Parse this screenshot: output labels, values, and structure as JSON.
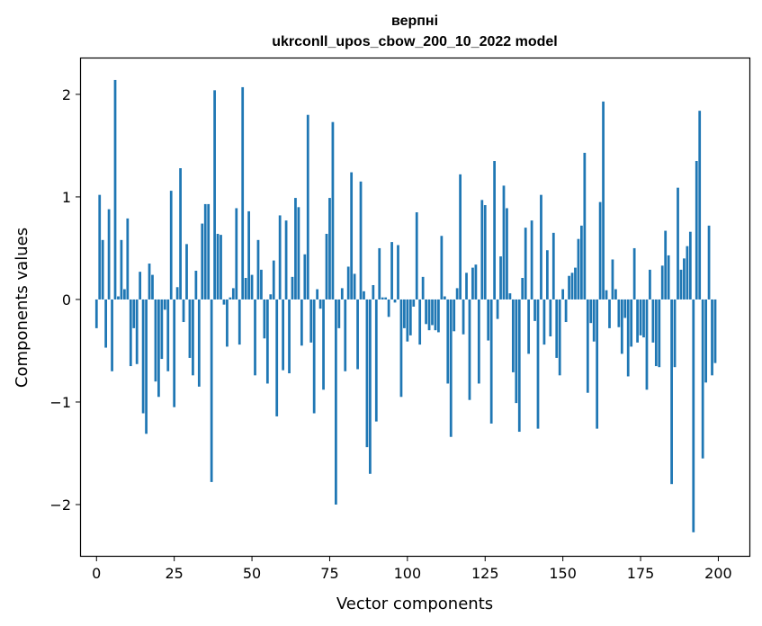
{
  "chart_data": {
    "type": "bar",
    "title": "верпні",
    "subtitle": "ukrconll_upos_cbow_200_10_2022 model",
    "xlabel": "Vector components",
    "ylabel": "Components values",
    "xlim": [
      -5,
      210
    ],
    "ylim": [
      -2.5,
      2.35
    ],
    "xticks": [
      0,
      25,
      50,
      75,
      100,
      125,
      150,
      175,
      200
    ],
    "yticks": [
      -2,
      -1,
      0,
      1,
      2
    ],
    "xtick_labels": [
      "0",
      "25",
      "50",
      "75",
      "100",
      "125",
      "150",
      "175",
      "200"
    ],
    "ytick_labels": [
      "−2",
      "−1",
      "0",
      "1",
      "2"
    ],
    "grid": false,
    "bar_color": "#1f77b4",
    "x": [
      0,
      1,
      2,
      3,
      4,
      5,
      6,
      7,
      8,
      9,
      10,
      11,
      12,
      13,
      14,
      15,
      16,
      17,
      18,
      19,
      20,
      21,
      22,
      23,
      24,
      25,
      26,
      27,
      28,
      29,
      30,
      31,
      32,
      33,
      34,
      35,
      36,
      37,
      38,
      39,
      40,
      41,
      42,
      43,
      44,
      45,
      46,
      47,
      48,
      49,
      50,
      51,
      52,
      53,
      54,
      55,
      56,
      57,
      58,
      59,
      60,
      61,
      62,
      63,
      64,
      65,
      66,
      67,
      68,
      69,
      70,
      71,
      72,
      73,
      74,
      75,
      76,
      77,
      78,
      79,
      80,
      81,
      82,
      83,
      84,
      85,
      86,
      87,
      88,
      89,
      90,
      91,
      92,
      93,
      94,
      95,
      96,
      97,
      98,
      99,
      100,
      101,
      102,
      103,
      104,
      105,
      106,
      107,
      108,
      109,
      110,
      111,
      112,
      113,
      114,
      115,
      116,
      117,
      118,
      119,
      120,
      121,
      122,
      123,
      124,
      125,
      126,
      127,
      128,
      129,
      130,
      131,
      132,
      133,
      134,
      135,
      136,
      137,
      138,
      139,
      140,
      141,
      142,
      143,
      144,
      145,
      146,
      147,
      148,
      149,
      150,
      151,
      152,
      153,
      154,
      155,
      156,
      157,
      158,
      159,
      160,
      161,
      162,
      163,
      164,
      165,
      166,
      167,
      168,
      169,
      170,
      171,
      172,
      173,
      174,
      175,
      176,
      177,
      178,
      179,
      180,
      181,
      182,
      183,
      184,
      185,
      186,
      187,
      188,
      189,
      190,
      191,
      192,
      193,
      194,
      195,
      196,
      197,
      198,
      199
    ],
    "values": [
      -0.28,
      1.02,
      0.58,
      -0.47,
      0.88,
      -0.7,
      2.14,
      0.03,
      0.58,
      0.1,
      0.79,
      -0.65,
      -0.28,
      -0.63,
      0.27,
      -1.11,
      -1.31,
      0.35,
      0.24,
      -0.8,
      -0.95,
      -0.58,
      -0.1,
      -0.7,
      1.06,
      -1.05,
      0.12,
      1.28,
      -0.22,
      0.54,
      -0.57,
      -0.74,
      0.28,
      -0.85,
      0.74,
      0.93,
      0.93,
      -1.78,
      2.04,
      0.64,
      0.63,
      -0.05,
      -0.46,
      0.02,
      0.11,
      0.89,
      -0.44,
      2.07,
      0.21,
      0.86,
      0.24,
      -0.74,
      0.58,
      0.29,
      -0.38,
      -0.82,
      0.05,
      0.38,
      -1.14,
      0.82,
      -0.69,
      0.77,
      -0.72,
      0.22,
      0.99,
      0.9,
      -0.45,
      0.44,
      1.8,
      -0.42,
      -1.11,
      0.1,
      -0.09,
      -0.88,
      0.64,
      0.99,
      1.73,
      -2.0,
      -0.28,
      0.11,
      -0.7,
      0.32,
      1.24,
      0.25,
      -0.68,
      1.15,
      0.08,
      -1.44,
      -1.7,
      0.14,
      -1.19,
      0.5,
      0.02,
      0.02,
      -0.17,
      0.56,
      -0.03,
      0.53,
      -0.95,
      -0.28,
      -0.41,
      -0.35,
      -0.07,
      0.85,
      -0.44,
      0.22,
      -0.24,
      -0.3,
      -0.25,
      -0.3,
      -0.32,
      0.62,
      0.03,
      -0.82,
      -1.34,
      -0.31,
      0.11,
      1.22,
      -0.34,
      0.26,
      -0.98,
      0.31,
      0.34,
      -0.82,
      0.97,
      0.92,
      -0.4,
      -1.21,
      1.35,
      -0.19,
      0.42,
      1.11,
      0.89,
      0.06,
      -0.71,
      -1.01,
      -1.29,
      0.21,
      0.7,
      -0.53,
      0.77,
      -0.21,
      -1.26,
      1.02,
      -0.44,
      0.48,
      -0.36,
      0.65,
      -0.57,
      -0.74,
      0.1,
      -0.22,
      0.23,
      0.26,
      0.31,
      0.59,
      0.72,
      1.43,
      -0.91,
      -0.23,
      -0.41,
      -1.26,
      0.95,
      1.93,
      0.09,
      -0.28,
      0.39,
      0.1,
      -0.27,
      -0.53,
      -0.18,
      -0.75,
      -0.46,
      0.5,
      -0.42,
      -0.35,
      -0.37,
      -0.88,
      0.29,
      -0.42,
      -0.65,
      -0.66,
      0.33,
      0.67,
      0.43,
      -1.8,
      -0.66,
      1.09,
      0.29,
      0.4,
      0.52,
      0.66,
      -2.27,
      1.35,
      1.84,
      -1.55,
      -0.81,
      0.72,
      -0.74,
      -0.62
    ]
  }
}
